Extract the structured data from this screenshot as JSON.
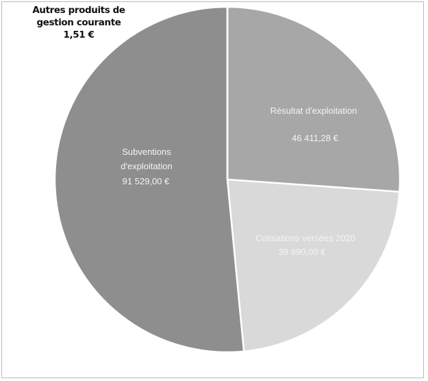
{
  "chart_data": {
    "type": "pie",
    "title": "",
    "slices": [
      {
        "name": "Résultat d'exploitation",
        "value": 46411.28,
        "value_label": "46 411,28 €",
        "color": "#a7a7a7"
      },
      {
        "name": "Cotisations versées 2020",
        "value": 39690.0,
        "value_label": "39 690,00 €",
        "color": "#d9d9d9"
      },
      {
        "name": "Subventions d'exploitation",
        "value": 91529.0,
        "value_label": "91 529,00 €",
        "color": "#8e8e8e"
      },
      {
        "name": "Autres produits de gestion courante",
        "value": 1.51,
        "value_label": "1,51 €",
        "color": "#8e8e8e"
      }
    ],
    "start_angle_deg": 0,
    "direction": "clockwise"
  },
  "labels": {
    "resultat_name": "Résultat d'exploitation",
    "resultat_value": "46 411,28 €",
    "cotisations_name": "Cotisations versées 2020",
    "cotisations_value": "39 690,00 €",
    "subventions_name_1": "Subventions",
    "subventions_name_2": "d'exploitation",
    "subventions_value": "91 529,00 €",
    "autres_line_1": "Autres produits de",
    "autres_line_2": "gestion courante",
    "autres_value": "1,51 €"
  }
}
